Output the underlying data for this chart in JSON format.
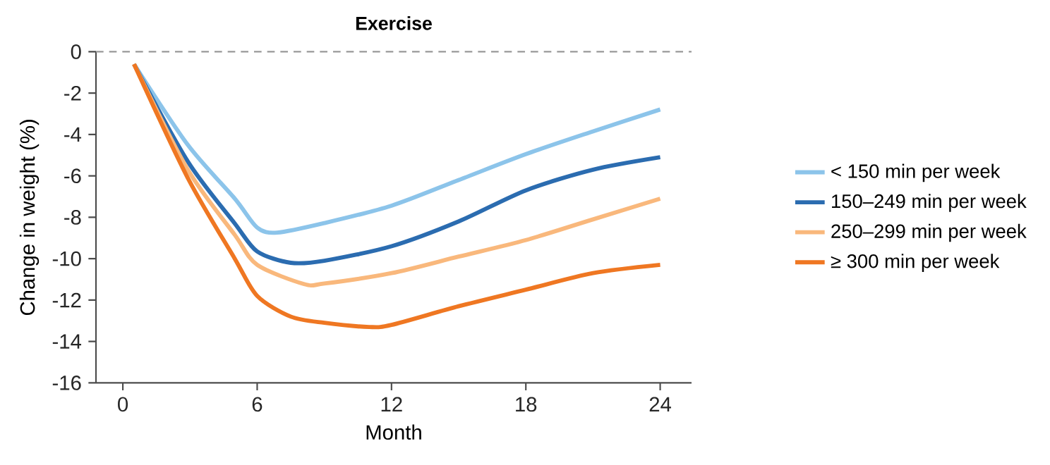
{
  "chart_data": {
    "type": "line",
    "title": "Exercise",
    "xlabel": "Month",
    "ylabel": "Change in weight (%)",
    "xlim": [
      -1.2,
      25.4
    ],
    "ylim": [
      -16,
      0
    ],
    "xticks": [
      0,
      6,
      12,
      18,
      24
    ],
    "yticks": [
      -16,
      -14,
      -12,
      -10,
      -8,
      -6,
      -4,
      -2,
      0
    ],
    "legend": "right",
    "grid": false,
    "marker": "none",
    "line_style": "solid",
    "ref_lines": [
      {
        "axis": "y",
        "value": 0,
        "color": "#999999",
        "line_style": "dashed"
      }
    ],
    "series": [
      {
        "name": "< 150 min per week",
        "color": "#8cc4ea",
        "x": [
          0.5,
          2.9,
          5,
          6,
          6.9,
          9,
          12,
          15,
          18,
          21,
          24
        ],
        "values": [
          -0.6,
          -4.5,
          -7.1,
          -8.5,
          -8.74,
          -8.28,
          -7.44,
          -6.2,
          -4.95,
          -3.85,
          -2.79
        ]
      },
      {
        "name": "150–249 min per week",
        "color": "#2b6cb0",
        "x": [
          0.5,
          2.9,
          5,
          6,
          7.5,
          9,
          12,
          15,
          18,
          21,
          24
        ],
        "values": [
          -0.6,
          -5.3,
          -8.3,
          -9.65,
          -10.2,
          -10.1,
          -9.4,
          -8.2,
          -6.7,
          -5.7,
          -5.1
        ]
      },
      {
        "name": "250–299 min per week",
        "color": "#f9b87c",
        "x": [
          0.5,
          2.9,
          5,
          6,
          8.1,
          9,
          12,
          15,
          18,
          21,
          24
        ],
        "values": [
          -0.6,
          -5.7,
          -8.85,
          -10.3,
          -11.23,
          -11.2,
          -10.7,
          -9.9,
          -9.1,
          -8.1,
          -7.1
        ]
      },
      {
        "name": "≥ 300 min per week",
        "color": "#ef7722",
        "x": [
          0.5,
          2.9,
          5,
          6,
          7.5,
          9,
          11,
          12,
          15,
          18,
          21,
          24
        ],
        "values": [
          -0.6,
          -6.1,
          -10.0,
          -11.8,
          -12.8,
          -13.1,
          -13.3,
          -13.2,
          -12.3,
          -11.5,
          -10.7,
          -10.3
        ]
      }
    ]
  }
}
